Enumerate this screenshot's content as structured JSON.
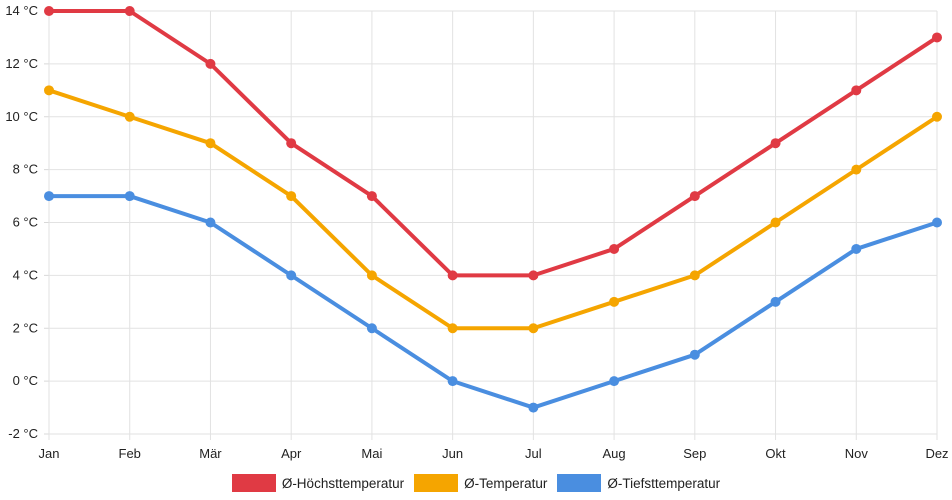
{
  "chart_data": {
    "type": "line",
    "categories": [
      "Jan",
      "Feb",
      "Mär",
      "Apr",
      "Mai",
      "Jun",
      "Jul",
      "Aug",
      "Sep",
      "Okt",
      "Nov",
      "Dez"
    ],
    "ylim": [
      -2,
      14
    ],
    "yticks": [
      -2,
      0,
      2,
      4,
      6,
      8,
      10,
      12,
      14
    ],
    "y_unit_suffix": " °C",
    "grid": true,
    "legend_position": "bottom",
    "series": [
      {
        "name": "Ø-Höchsttemperatur",
        "color": "#e03a44",
        "values": [
          14,
          14,
          12,
          9,
          7,
          4,
          4,
          5,
          7,
          9,
          11,
          13
        ]
      },
      {
        "name": "Ø-Temperatur",
        "color": "#f5a500",
        "values": [
          11,
          10,
          9,
          7,
          4,
          2,
          2,
          3,
          4,
          6,
          8,
          10
        ]
      },
      {
        "name": "Ø-Tiefsttemperatur",
        "color": "#4a8ee0",
        "values": [
          7,
          7,
          6,
          4,
          2,
          0,
          -1,
          0,
          1,
          3,
          5,
          6
        ]
      }
    ]
  }
}
